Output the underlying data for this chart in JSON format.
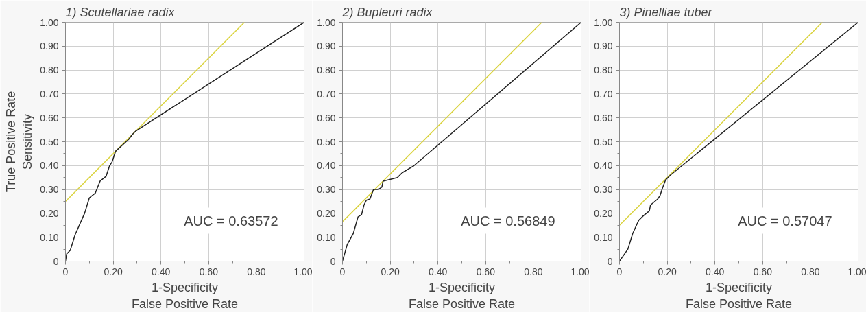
{
  "chart_data": [
    {
      "type": "line",
      "title": "1) Scutellariae radix",
      "xlabel": "1-Specificity\nFalse Positive Rate",
      "ylabel": "True Positive Rate\nSensitivity",
      "xlim": [
        0,
        1
      ],
      "ylim": [
        0,
        1
      ],
      "xticks": [
        0,
        {
          "value": 0.2,
          "label": "0.20"
        },
        {
          "value": 0.4,
          "label": "0.40"
        },
        {
          "value": 0.6,
          "label": "0.60"
        },
        {
          "value": 0.8,
          "label": "0.80"
        },
        {
          "value": 1,
          "label": "1.00"
        }
      ],
      "yticks": [
        0,
        {
          "value": 0.1,
          "label": "0.10"
        },
        {
          "value": 0.2,
          "label": "0.20"
        },
        {
          "value": 0.3,
          "label": "0.30"
        },
        {
          "value": 0.4,
          "label": "0.40"
        },
        {
          "value": 0.5,
          "label": "0.50"
        },
        {
          "value": 0.6,
          "label": "0.60"
        },
        {
          "value": 0.7,
          "label": "0.70"
        },
        {
          "value": 0.8,
          "label": "0.80"
        },
        {
          "value": 0.9,
          "label": "0.90"
        },
        {
          "value": 1,
          "label": "1.00"
        }
      ],
      "grid": true,
      "marker": "none",
      "line_style": "solid",
      "annotations": [
        "AUC = 0.63572"
      ],
      "series": [
        {
          "color": "#d9d23a",
          "x": [
            0,
            0.75
          ],
          "values": [
            0.25,
            1
          ]
        },
        {
          "color": "#222222",
          "x": [
            0,
            0.005,
            0.02,
            0.04,
            0.08,
            0.1,
            0.125,
            0.145,
            0.17,
            0.185,
            0.195,
            0.21,
            0.265,
            0.28,
            0.295,
            1
          ],
          "values": [
            0,
            0.03,
            0.045,
            0.11,
            0.2,
            0.265,
            0.285,
            0.335,
            0.355,
            0.4,
            0.415,
            0.46,
            0.51,
            0.53,
            0.545,
            1
          ]
        }
      ]
    },
    {
      "type": "line",
      "title": "2) Bupleuri radix",
      "xlabel": "1-Specificity\nFalse Positive Rate",
      "xlim": [
        0,
        1
      ],
      "ylim": [
        0,
        1
      ],
      "xticks": [
        0,
        {
          "value": 0.2,
          "label": "0.20"
        },
        {
          "value": 0.4,
          "label": "0.40"
        },
        {
          "value": 0.6,
          "label": "0.60"
        },
        {
          "value": 0.8,
          "label": "0.80"
        },
        {
          "value": 1,
          "label": "1.00"
        }
      ],
      "yticks": [
        0,
        {
          "value": 0.1,
          "label": "0.10"
        },
        {
          "value": 0.2,
          "label": "0.20"
        },
        {
          "value": 0.3,
          "label": "0.30"
        },
        {
          "value": 0.4,
          "label": "0.40"
        },
        {
          "value": 0.5,
          "label": "0.50"
        },
        {
          "value": 0.6,
          "label": "0.60"
        },
        {
          "value": 0.7,
          "label": "0.70"
        },
        {
          "value": 0.8,
          "label": "0.80"
        },
        {
          "value": 0.9,
          "label": "0.90"
        },
        {
          "value": 1,
          "label": "1.00"
        }
      ],
      "grid": true,
      "marker": "none",
      "line_style": "solid",
      "annotations": [
        "AUC = 0.56849"
      ],
      "series": [
        {
          "color": "#d9d23a",
          "x": [
            0,
            0.835
          ],
          "values": [
            0.165,
            1
          ]
        },
        {
          "color": "#222222",
          "x": [
            0,
            0.02,
            0.045,
            0.065,
            0.08,
            0.09,
            0.1,
            0.115,
            0.13,
            0.15,
            0.165,
            0.17,
            0.23,
            0.25,
            0.3,
            1
          ],
          "values": [
            0,
            0.07,
            0.115,
            0.185,
            0.195,
            0.235,
            0.255,
            0.26,
            0.3,
            0.3,
            0.31,
            0.335,
            0.35,
            0.37,
            0.4,
            1
          ]
        }
      ]
    },
    {
      "type": "line",
      "title": "3) Pinelliae tuber",
      "xlabel": "1-Specificity\nFalse Positive Rate",
      "xlim": [
        0,
        1
      ],
      "ylim": [
        0,
        1
      ],
      "xticks": [
        0,
        {
          "value": 0.2,
          "label": "0.20"
        },
        {
          "value": 0.4,
          "label": "0.40"
        },
        {
          "value": 0.6,
          "label": "0.60"
        },
        {
          "value": 0.8,
          "label": "0.80"
        },
        {
          "value": 1,
          "label": "1.00"
        }
      ],
      "yticks": [
        0,
        {
          "value": 0.1,
          "label": "0.10"
        },
        {
          "value": 0.2,
          "label": "0.20"
        },
        {
          "value": 0.3,
          "label": "0.30"
        },
        {
          "value": 0.4,
          "label": "0.40"
        },
        {
          "value": 0.5,
          "label": "0.50"
        },
        {
          "value": 0.6,
          "label": "0.60"
        },
        {
          "value": 0.7,
          "label": "0.70"
        },
        {
          "value": 0.8,
          "label": "0.80"
        },
        {
          "value": 0.9,
          "label": "0.90"
        },
        {
          "value": 1,
          "label": "1.00"
        }
      ],
      "grid": true,
      "marker": "none",
      "line_style": "solid",
      "annotations": [
        "AUC = 0.57047"
      ],
      "series": [
        {
          "color": "#d9d23a",
          "x": [
            0,
            0.85
          ],
          "values": [
            0.15,
            1
          ]
        },
        {
          "color": "#222222",
          "x": [
            0,
            0.035,
            0.055,
            0.08,
            0.1,
            0.125,
            0.13,
            0.16,
            0.17,
            0.18,
            0.193,
            0.213,
            1
          ],
          "values": [
            0,
            0.05,
            0.115,
            0.17,
            0.19,
            0.21,
            0.235,
            0.26,
            0.275,
            0.305,
            0.34,
            0.36,
            1
          ]
        }
      ]
    }
  ]
}
